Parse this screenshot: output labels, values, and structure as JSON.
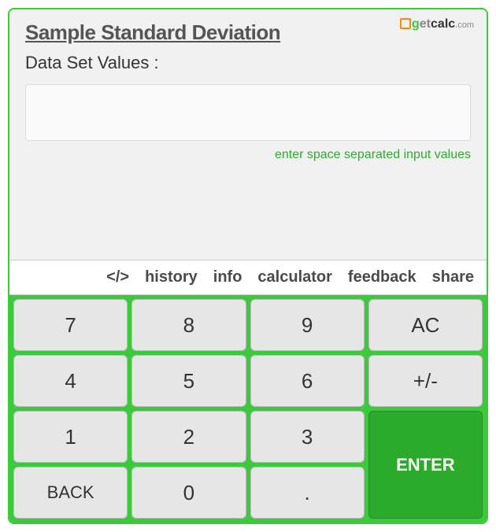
{
  "header": {
    "title": "Sample Standard Deviation",
    "input_label": "Data Set Values :",
    "input_value": "",
    "hint": "enter space separated input values",
    "logo_text_et": "et",
    "logo_text_calc": "calc",
    "logo_text_com": ".com"
  },
  "tabs": {
    "embed": "</>",
    "history": "history",
    "info": "info",
    "calculator": "calculator",
    "feedback": "feedback",
    "share": "share"
  },
  "keys": {
    "k7": "7",
    "k8": "8",
    "k9": "9",
    "ac": "AC",
    "k4": "4",
    "k5": "5",
    "k6": "6",
    "pm": "+/-",
    "k1": "1",
    "k2": "2",
    "k3": "3",
    "back": "BACK",
    "k0": "0",
    "dot": ".",
    "enter": "ENTER"
  },
  "colors": {
    "accent": "#3cc93c",
    "header_bg": "#f1f1f1",
    "key_bg": "#e6e6e6",
    "enter_bg": "#2caa2c"
  }
}
